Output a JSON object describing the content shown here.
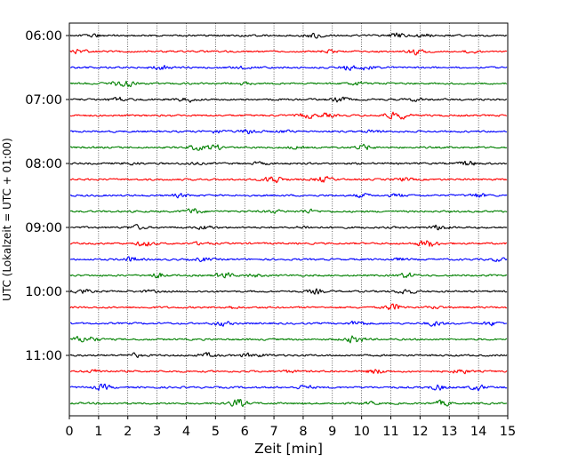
{
  "chart_data": {
    "type": "line",
    "title": "",
    "xlabel": "Zeit  [min]",
    "ylabel": "UTC (Lokalzeit = UTC + 01:00)",
    "xlim": [
      0,
      15
    ],
    "x_ticks": [
      "0",
      "1",
      "2",
      "3",
      "4",
      "5",
      "6",
      "7",
      "8",
      "9",
      "10",
      "11",
      "12",
      "13",
      "14",
      "15"
    ],
    "y_tick_labels": [
      "06:00",
      "07:00",
      "08:00",
      "09:00",
      "10:00",
      "11:00"
    ],
    "grid": "vertical dotted lines at each minute",
    "legend": "none",
    "row_interval_minutes": 15,
    "row_start_times": [
      "06:00",
      "06:15",
      "06:30",
      "06:45",
      "07:00",
      "07:15",
      "07:30",
      "07:45",
      "08:00",
      "08:15",
      "08:30",
      "08:45",
      "09:00",
      "09:15",
      "09:30",
      "09:45",
      "10:00",
      "10:15",
      "10:30",
      "10:45",
      "11:00",
      "11:15",
      "11:30",
      "11:45"
    ],
    "trace_colors": [
      "#000000",
      "#ff0000",
      "#0000ff",
      "#008000"
    ],
    "trace_style": "seismogram helicorder; low-amplitude noise around each row baseline"
  }
}
